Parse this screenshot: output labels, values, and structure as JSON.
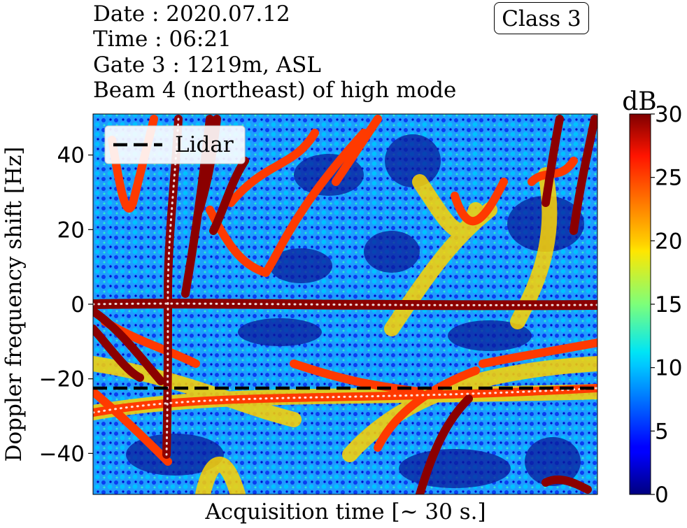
{
  "info": {
    "date": "Date : 2020.07.12",
    "time": "Time : 06:21",
    "gate": "Gate 3 : 1219m, ASL",
    "beam": "Beam 4 (northeast) of high mode"
  },
  "class_badge": "Class 3",
  "chart_data": {
    "type": "heatmap",
    "title": "",
    "xlabel": "Acquisition time [~ 30 s.]",
    "ylabel": "Doppler frequency shift [Hz]",
    "ylim": [
      -51,
      51
    ],
    "yticks": [
      -40,
      -20,
      0,
      20,
      40
    ],
    "ytick_labels": [
      "−40",
      "−20",
      "0",
      "20",
      "40"
    ],
    "xticks": [],
    "colorbar": {
      "label": "dB",
      "range": [
        0,
        30
      ],
      "ticks": [
        0,
        5,
        10,
        15,
        20,
        25,
        30
      ],
      "colormap": "jet"
    },
    "lidar_line": {
      "name": "Lidar",
      "y": -22.5,
      "color": "#000000",
      "style": "dashed"
    },
    "legend": {
      "entries": [
        "Lidar"
      ],
      "placement": "top-left"
    },
    "grid": false
  }
}
